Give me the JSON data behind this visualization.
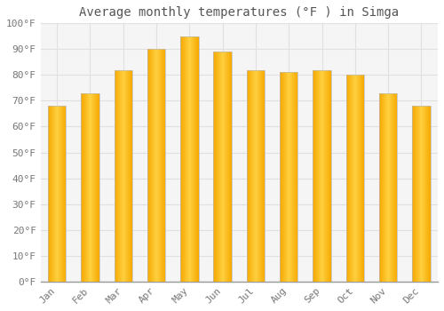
{
  "title": "Average monthly temperatures (°F ) in Simga",
  "months": [
    "Jan",
    "Feb",
    "Mar",
    "Apr",
    "May",
    "Jun",
    "Jul",
    "Aug",
    "Sep",
    "Oct",
    "Nov",
    "Dec"
  ],
  "values": [
    68,
    73,
    82,
    90,
    95,
    89,
    82,
    81,
    82,
    80,
    73,
    68
  ],
  "bar_color_center": "#FFD040",
  "bar_color_edge": "#F5A800",
  "bar_outline_color": "#BBBBBB",
  "ylim": [
    0,
    100
  ],
  "yticks": [
    0,
    10,
    20,
    30,
    40,
    50,
    60,
    70,
    80,
    90,
    100
  ],
  "ytick_labels": [
    "0°F",
    "10°F",
    "20°F",
    "30°F",
    "40°F",
    "50°F",
    "60°F",
    "70°F",
    "80°F",
    "90°F",
    "100°F"
  ],
  "background_color": "#FFFFFF",
  "plot_bg_color": "#F5F5F5",
  "grid_color": "#E0E0E0",
  "title_fontsize": 10,
  "tick_fontsize": 8,
  "tick_color": "#777777",
  "xlabel_rotation": 45,
  "bar_width": 0.55
}
